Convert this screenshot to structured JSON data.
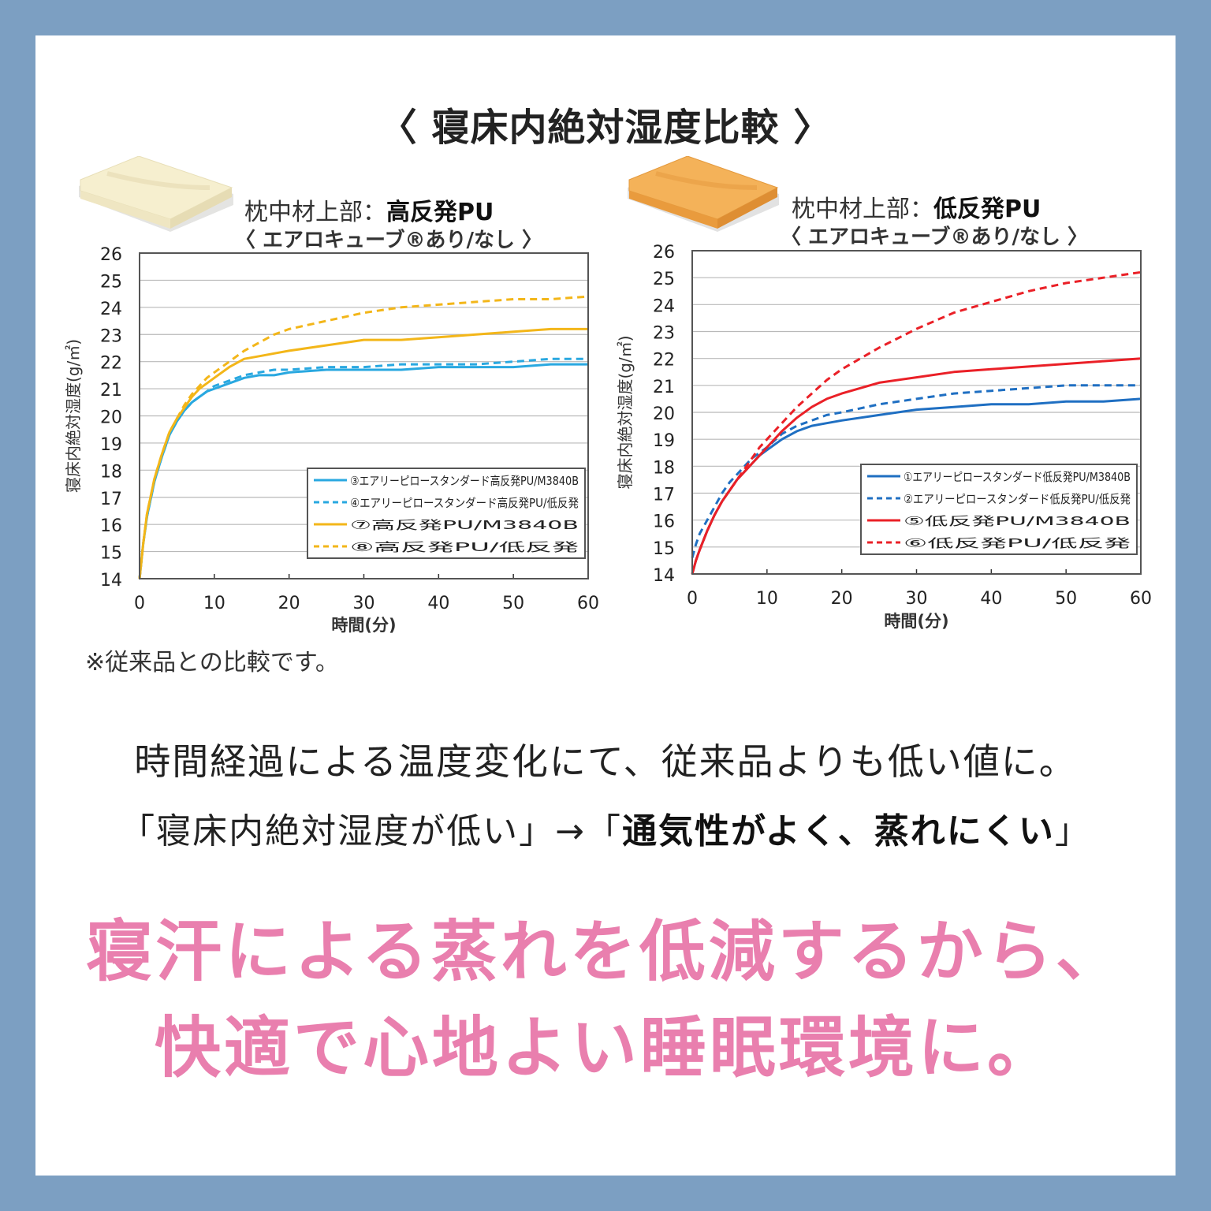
{
  "main_title": "〈 寝床内絶対湿度比較 〉",
  "chart_data": [
    {
      "type": "line",
      "title_prefix": "枕中材上部：",
      "title_strong": "高反発PU",
      "subtitle": "〈 エアロキューブ®あり/なし 〉",
      "xlabel": "時間(分)",
      "ylabel": "寝床内絶対湿度(g/㎡)",
      "xlim": [
        0,
        60
      ],
      "ylim": [
        14,
        26
      ],
      "xticks": [
        0,
        10,
        20,
        30,
        40,
        50,
        60
      ],
      "yticks": [
        14,
        15,
        16,
        17,
        18,
        19,
        20,
        21,
        22,
        23,
        24,
        25,
        26
      ],
      "grid": true,
      "legend_position": "bottom-right",
      "x": [
        0,
        0.5,
        1,
        2,
        3,
        4,
        5,
        6,
        7,
        8,
        9,
        10,
        12,
        14,
        16,
        18,
        20,
        25,
        30,
        35,
        40,
        45,
        50,
        55,
        60
      ],
      "series": [
        {
          "name": "③エアリーピロースタンダード高反発PU/M3840B",
          "color": "#29a8e0",
          "dash": false,
          "values": [
            14.0,
            15.3,
            16.3,
            17.6,
            18.5,
            19.3,
            19.8,
            20.2,
            20.5,
            20.7,
            20.9,
            21.0,
            21.2,
            21.4,
            21.5,
            21.5,
            21.6,
            21.7,
            21.7,
            21.7,
            21.8,
            21.8,
            21.8,
            21.9,
            21.9
          ]
        },
        {
          "name": "④エアリーピロースタンダード高反発PU/低反発",
          "color": "#29a8e0",
          "dash": true,
          "values": [
            14.0,
            15.3,
            16.3,
            17.6,
            18.5,
            19.3,
            19.8,
            20.2,
            20.5,
            20.7,
            20.9,
            21.1,
            21.3,
            21.5,
            21.6,
            21.7,
            21.7,
            21.8,
            21.8,
            21.9,
            21.9,
            21.9,
            22.0,
            22.1,
            22.1
          ]
        },
        {
          "name": "⑦高反発PU/M3840B",
          "color": "#f3b619",
          "dash": false,
          "values": [
            14.0,
            15.3,
            16.4,
            17.7,
            18.6,
            19.4,
            19.9,
            20.3,
            20.7,
            21.0,
            21.2,
            21.4,
            21.8,
            22.1,
            22.2,
            22.3,
            22.4,
            22.6,
            22.8,
            22.8,
            22.9,
            23.0,
            23.1,
            23.2,
            23.2
          ]
        },
        {
          "name": "⑧高反発PU/低反発",
          "color": "#f3b619",
          "dash": true,
          "values": [
            14.0,
            15.3,
            16.4,
            17.7,
            18.6,
            19.4,
            19.9,
            20.4,
            20.8,
            21.1,
            21.4,
            21.6,
            22.0,
            22.4,
            22.7,
            23.0,
            23.2,
            23.5,
            23.8,
            24.0,
            24.1,
            24.2,
            24.3,
            24.3,
            24.4
          ]
        }
      ]
    },
    {
      "type": "line",
      "title_prefix": "枕中材上部：",
      "title_strong": "低反発PU",
      "subtitle": "〈 エアロキューブ®あり/なし 〉",
      "xlabel": "時間(分)",
      "ylabel": "寝床内絶対湿度(g/㎡)",
      "xlim": [
        0,
        60
      ],
      "ylim": [
        14,
        26
      ],
      "xticks": [
        0,
        10,
        20,
        30,
        40,
        50,
        60
      ],
      "yticks": [
        14,
        15,
        16,
        17,
        18,
        19,
        20,
        21,
        22,
        23,
        24,
        25,
        26
      ],
      "grid": true,
      "legend_position": "bottom-right",
      "x": [
        0,
        0.5,
        1,
        2,
        3,
        4,
        5,
        6,
        7,
        8,
        9,
        10,
        12,
        14,
        16,
        18,
        20,
        25,
        30,
        35,
        40,
        45,
        50,
        55,
        60
      ],
      "series": [
        {
          "name": "①エアリーピロースタンダード低反発PU/M3840B",
          "color": "#1f6fc2",
          "dash": false,
          "values": [
            14.0,
            14.5,
            14.9,
            15.6,
            16.2,
            16.7,
            17.1,
            17.5,
            17.8,
            18.1,
            18.4,
            18.6,
            19.0,
            19.3,
            19.5,
            19.6,
            19.7,
            19.9,
            20.1,
            20.2,
            20.3,
            20.3,
            20.4,
            20.4,
            20.5
          ]
        },
        {
          "name": "②エアリーピロースタンダード低反発PU/低反発",
          "color": "#1f6fc2",
          "dash": true,
          "values": [
            14.6,
            15.1,
            15.5,
            16.0,
            16.5,
            17.0,
            17.4,
            17.7,
            18.0,
            18.3,
            18.5,
            18.7,
            19.2,
            19.5,
            19.7,
            19.9,
            20.0,
            20.3,
            20.5,
            20.7,
            20.8,
            20.9,
            21.0,
            21.0,
            21.0
          ]
        },
        {
          "name": "⑤低反発PU/M3840B",
          "color": "#ea2027",
          "dash": false,
          "values": [
            14.0,
            14.5,
            14.9,
            15.6,
            16.2,
            16.7,
            17.1,
            17.5,
            17.8,
            18.1,
            18.4,
            18.7,
            19.3,
            19.8,
            20.2,
            20.5,
            20.7,
            21.1,
            21.3,
            21.5,
            21.6,
            21.7,
            21.8,
            21.9,
            22.0
          ]
        },
        {
          "name": "⑥低反発PU/低反発",
          "color": "#ea2027",
          "dash": true,
          "values": [
            14.0,
            14.5,
            14.9,
            15.6,
            16.2,
            16.7,
            17.1,
            17.5,
            17.9,
            18.3,
            18.7,
            19.0,
            19.6,
            20.2,
            20.7,
            21.2,
            21.6,
            22.4,
            23.1,
            23.7,
            24.1,
            24.5,
            24.8,
            25.0,
            25.2
          ]
        }
      ]
    }
  ],
  "note": "※従来品との比較です。",
  "message_line1": "時間経過による温度変化にて、従来品よりも低い値に。",
  "message_line2_plain": "「寝床内絶対湿度が低い」→「",
  "message_line2_strong": "通気性がよく、蒸れにくい",
  "message_line2_end": "」",
  "headline_line1": "寝汗による蒸れを低減するから、",
  "headline_line2": "快適で心地よい睡眠環境に。"
}
